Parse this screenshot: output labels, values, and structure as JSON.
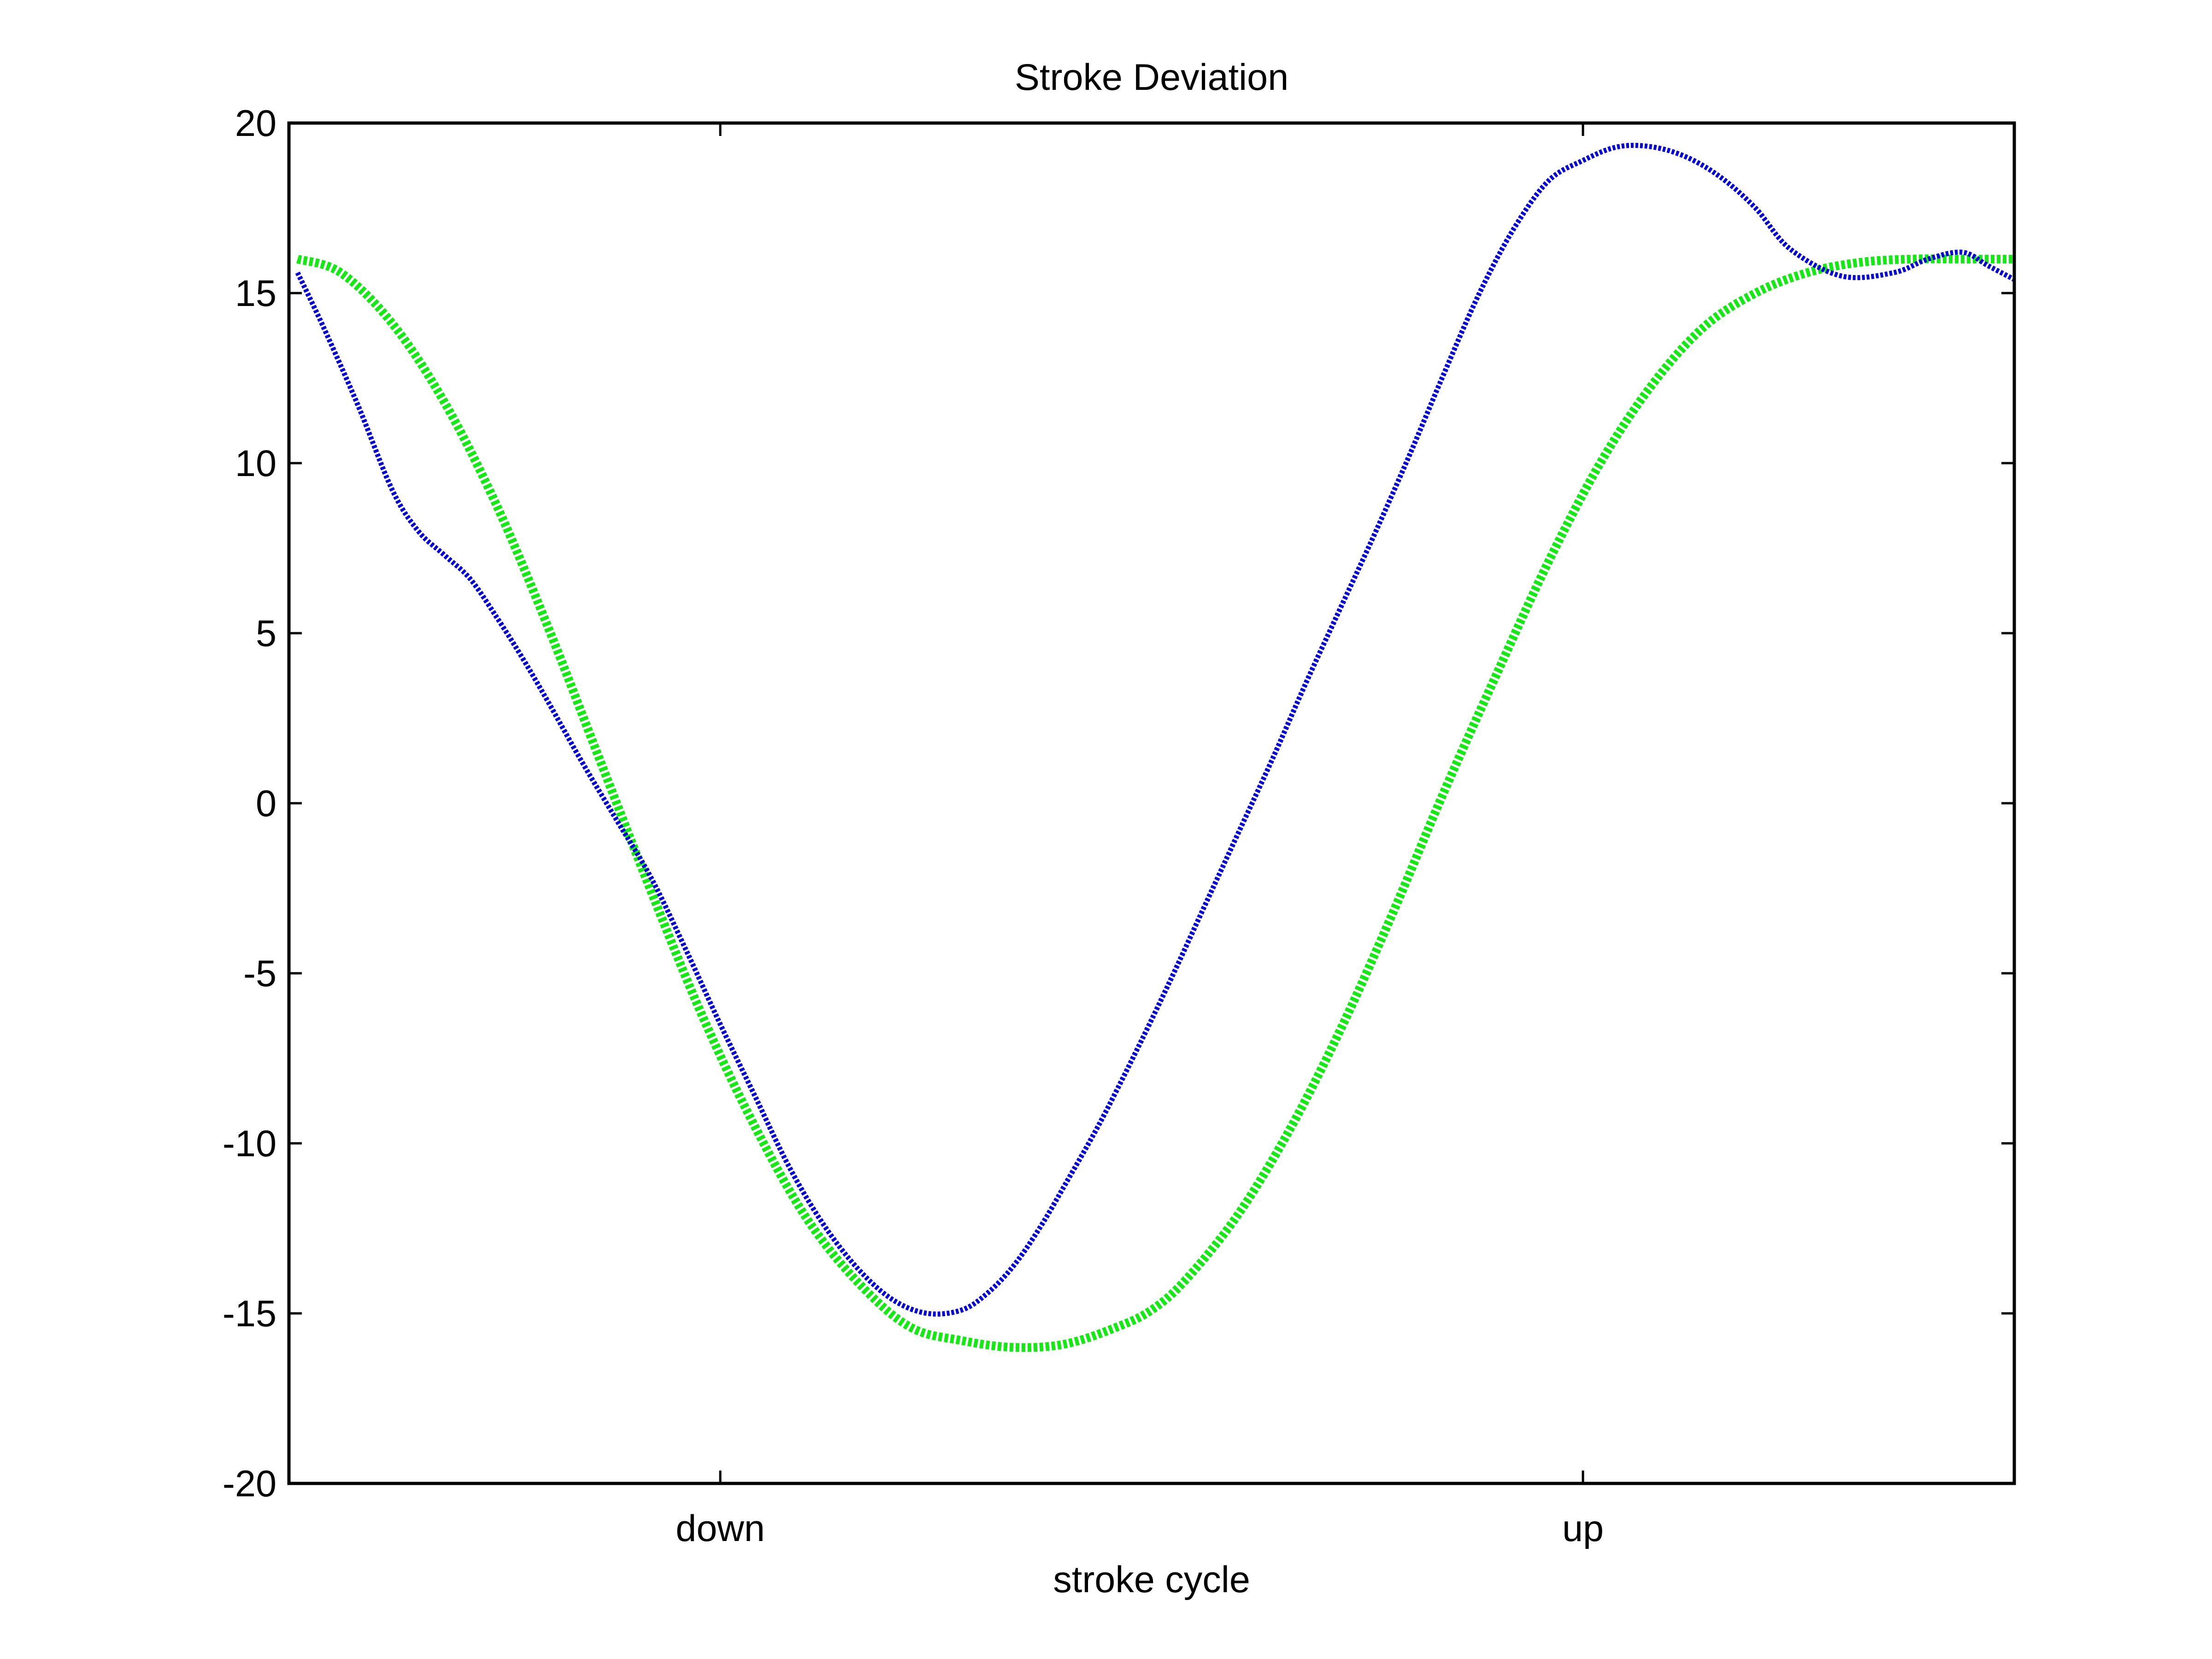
{
  "chart_data": {
    "type": "line",
    "title": "Stroke Deviation",
    "xlabel": "stroke cycle",
    "ylabel": "",
    "xlim": [
      0,
      1
    ],
    "ylim": [
      -20,
      20
    ],
    "yticks": [
      -20,
      -15,
      -10,
      -5,
      0,
      5,
      10,
      15,
      20
    ],
    "ytick_labels": [
      "-20",
      "-15",
      "-10",
      "-5",
      "0",
      "5",
      "10",
      "15",
      "20"
    ],
    "xticks": [
      0.25,
      0.75
    ],
    "xtick_labels": [
      "down",
      "up"
    ],
    "grid": false,
    "legend": false,
    "series": [
      {
        "color": "#0000d4",
        "line_style": "dotted",
        "x": [
          0.005,
          0.02,
          0.04,
          0.06,
          0.075,
          0.09,
          0.105,
          0.12,
          0.135,
          0.15,
          0.17,
          0.19,
          0.21,
          0.23,
          0.25,
          0.27,
          0.29,
          0.31,
          0.33,
          0.35,
          0.37,
          0.39,
          0.405,
          0.42,
          0.435,
          0.45,
          0.47,
          0.49,
          0.51,
          0.53,
          0.55,
          0.57,
          0.59,
          0.61,
          0.63,
          0.65,
          0.67,
          0.69,
          0.71,
          0.73,
          0.75,
          0.77,
          0.79,
          0.81,
          0.83,
          0.85,
          0.87,
          0.9,
          0.93,
          0.95,
          0.97,
          0.985,
          1.0
        ],
        "y": [
          15.6,
          14.0,
          11.7,
          9.2,
          8.0,
          7.3,
          6.6,
          5.5,
          4.3,
          3.0,
          1.2,
          -0.5,
          -2.2,
          -4.3,
          -6.5,
          -8.6,
          -10.7,
          -12.4,
          -13.7,
          -14.6,
          -15.0,
          -14.9,
          -14.4,
          -13.6,
          -12.5,
          -11.2,
          -9.4,
          -7.4,
          -5.3,
          -3.1,
          -0.9,
          1.3,
          3.6,
          5.8,
          8.0,
          10.3,
          12.7,
          15.0,
          16.9,
          18.3,
          18.9,
          19.3,
          19.3,
          19.0,
          18.4,
          17.5,
          16.3,
          15.5,
          15.6,
          16.0,
          16.2,
          15.8,
          15.4
        ]
      },
      {
        "color": "#16e816",
        "line_style": "dotted",
        "x": [
          0.005,
          0.03,
          0.06,
          0.09,
          0.12,
          0.15,
          0.18,
          0.21,
          0.24,
          0.27,
          0.3,
          0.33,
          0.36,
          0.39,
          0.42,
          0.45,
          0.48,
          0.5,
          0.52,
          0.55,
          0.58,
          0.61,
          0.64,
          0.67,
          0.7,
          0.73,
          0.76,
          0.79,
          0.82,
          0.85,
          0.88,
          0.91,
          0.94,
          0.97,
          1.0
        ],
        "y": [
          16.0,
          15.6,
          14.1,
          11.8,
          8.8,
          5.2,
          1.3,
          -2.6,
          -6.3,
          -9.5,
          -12.2,
          -14.1,
          -15.4,
          -15.8,
          -16.0,
          -15.9,
          -15.4,
          -14.9,
          -14.0,
          -12.1,
          -9.6,
          -6.6,
          -3.2,
          0.4,
          3.8,
          7.1,
          10.0,
          12.3,
          14.0,
          15.0,
          15.6,
          15.9,
          16.0,
          16.0,
          16.0
        ]
      }
    ]
  }
}
